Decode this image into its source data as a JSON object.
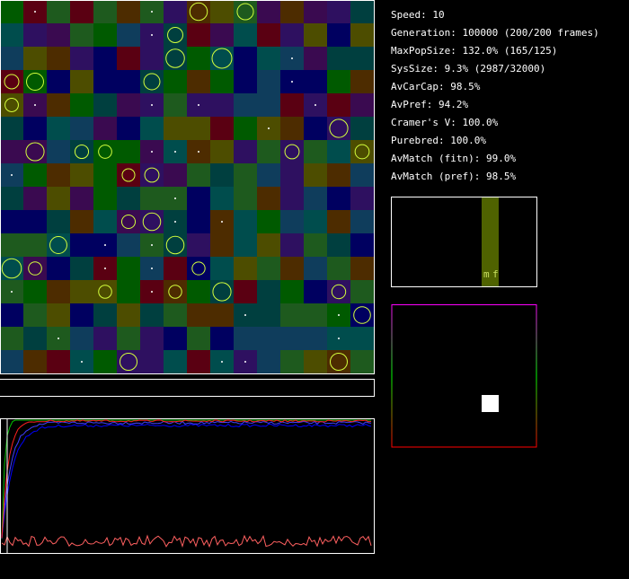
{
  "stats": [
    "Speed: 10",
    "Generation: 100000 (200/200 frames)",
    "MaxPopSize: 132.0% (165/125)",
    "SysSize: 9.3% (2987/32000)",
    "AvCarCap: 98.5%",
    "AvPref: 94.2%",
    "Cramer's V: 100.0%",
    "Purebred: 100.0%",
    "AvMatch (fitn): 99.0%",
    "AvMatch (pref): 98.5%"
  ],
  "histogram": {
    "labels": [
      "m",
      "f"
    ]
  }
}
